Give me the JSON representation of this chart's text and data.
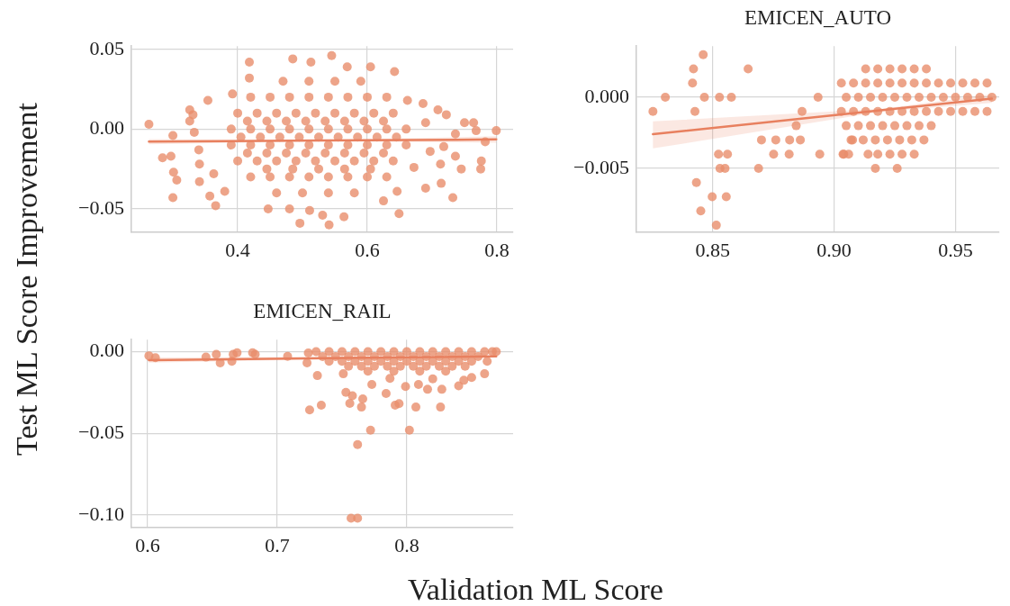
{
  "chart_data": [
    {
      "type": "scatter",
      "ylabel": "Test ML Score Improvement",
      "xlim": [
        0.236,
        0.825
      ],
      "ylim": [
        -0.0647,
        0.052
      ],
      "xticks": [
        0.4,
        0.6,
        0.8
      ],
      "yticks": [
        0.05,
        {
          "value": 0,
          "label": "0.00"
        },
        {
          "value": -0.05,
          "label": "−0.05"
        }
      ],
      "grid": true,
      "series": [
        {
          "color": "#e98d6b",
          "marker": "circle",
          "x": [
            0.263,
            0.3,
            0.284,
            0.297,
            0.301,
            0.3,
            0.306,
            0.326,
            0.326,
            0.331,
            0.354,
            0.333,
            0.34,
            0.341,
            0.341,
            0.357,
            0.366,
            0.363,
            0.392,
            0.38,
            0.418,
            0.418,
            0.485,
            0.513,
            0.545,
            0.569,
            0.605,
            0.642,
            0.496,
            0.541,
            0.531,
            0.511,
            0.447,
            0.48,
            0.564,
            0.649,
            0.625,
            0.646,
            0.69,
            0.714,
            0.732,
            0.745,
            0.775,
            0.776,
            0.799,
            0.782,
            0.764,
            0.75,
            0.768,
            0.709,
            0.686,
            0.722,
            0.662,
            0.69,
            0.697,
            0.713,
            0.672,
            0.736,
            0.736,
            0.718,
            0.47,
            0.51,
            0.55,
            0.59,
            0.42,
            0.45,
            0.48,
            0.51,
            0.54,
            0.57,
            0.6,
            0.63,
            0.4,
            0.43,
            0.46,
            0.49,
            0.52,
            0.55,
            0.58,
            0.61,
            0.64,
            0.39,
            0.42,
            0.45,
            0.48,
            0.51,
            0.54,
            0.57,
            0.6,
            0.63,
            0.66,
            0.39,
            0.42,
            0.45,
            0.48,
            0.51,
            0.54,
            0.57,
            0.6,
            0.63,
            0.66,
            0.4,
            0.43,
            0.46,
            0.49,
            0.52,
            0.55,
            0.58,
            0.61,
            0.64,
            0.42,
            0.45,
            0.48,
            0.51,
            0.54,
            0.57,
            0.6,
            0.63,
            0.46,
            0.5,
            0.54,
            0.58,
            0.415,
            0.445,
            0.475,
            0.505,
            0.535,
            0.565,
            0.595,
            0.625,
            0.405,
            0.435,
            0.465,
            0.495,
            0.525,
            0.555,
            0.585,
            0.615,
            0.645,
            0.415,
            0.445,
            0.475,
            0.505,
            0.535,
            0.565,
            0.595,
            0.625,
            0.445,
            0.485,
            0.525,
            0.565,
            0.605
          ],
          "values": [
            0.003,
            -0.004,
            -0.018,
            -0.017,
            -0.027,
            -0.043,
            -0.032,
            0.012,
            0.005,
            0.009,
            0.018,
            -0.002,
            -0.013,
            -0.022,
            -0.033,
            -0.042,
            -0.048,
            -0.028,
            0.022,
            -0.039,
            0.042,
            0.032,
            0.044,
            0.042,
            0.046,
            0.039,
            0.039,
            0.036,
            -0.059,
            -0.06,
            -0.054,
            -0.051,
            -0.05,
            -0.05,
            -0.055,
            -0.053,
            -0.045,
            -0.039,
            -0.037,
            -0.034,
            -0.043,
            -0.025,
            -0.025,
            -0.02,
            -0.001,
            -0.008,
            0.004,
            0.004,
            -0.001,
            0.012,
            0.016,
            0.009,
            0.018,
            0.004,
            -0.014,
            -0.022,
            -0.024,
            -0.017,
            -0.003,
            -0.011,
            0.03,
            0.03,
            0.03,
            0.03,
            0.02,
            0.02,
            0.02,
            0.02,
            0.02,
            0.02,
            0.02,
            0.02,
            0.01,
            0.01,
            0.01,
            0.01,
            0.01,
            0.01,
            0.01,
            0.01,
            0.01,
            0,
            0,
            0,
            0,
            0,
            0,
            0,
            0,
            0,
            0,
            -0.01,
            -0.01,
            -0.01,
            -0.01,
            -0.01,
            -0.01,
            -0.01,
            -0.01,
            -0.01,
            -0.01,
            -0.02,
            -0.02,
            -0.02,
            -0.02,
            -0.02,
            -0.02,
            -0.02,
            -0.02,
            -0.02,
            -0.03,
            -0.03,
            -0.03,
            -0.03,
            -0.03,
            -0.03,
            -0.03,
            -0.03,
            -0.04,
            -0.04,
            -0.04,
            -0.04,
            0.005,
            0.005,
            0.005,
            0.005,
            0.005,
            0.005,
            0.005,
            0.005,
            -0.005,
            -0.005,
            -0.005,
            -0.005,
            -0.005,
            -0.005,
            -0.005,
            -0.005,
            -0.005,
            -0.015,
            -0.015,
            -0.015,
            -0.015,
            -0.015,
            -0.015,
            -0.015,
            -0.015,
            -0.025,
            -0.025,
            -0.025,
            -0.025,
            -0.025
          ]
        },
        {
          "type": "line",
          "marker": "none",
          "color": "#e8805f",
          "x": [
            0.263,
            0.53,
            0.799
          ],
          "values": [
            -0.0079,
            -0.0072,
            -0.0065
          ],
          "lower": [
            -0.0095,
            -0.0076,
            -0.0085
          ],
          "upper": [
            -0.0063,
            -0.0068,
            -0.0045
          ]
        }
      ]
    },
    {
      "type": "scatter",
      "title": "EMICEN_AUTO",
      "xlim": [
        0.8186,
        0.968
      ],
      "ylim": [
        -0.0095,
        0.0036
      ],
      "xticks": [
        0.85,
        {
          "value": 0.9,
          "label": "0.90"
        },
        0.95
      ],
      "yticks": [
        {
          "value": 0,
          "label": "0.000"
        },
        {
          "value": -0.005,
          "label": "−0.005"
        }
      ],
      "grid": true,
      "series": [
        {
          "color": "#e98d6b",
          "marker": "circle",
          "x": [
            0.8254,
            0.8305,
            0.8417,
            0.8421,
            0.8461,
            0.8427,
            0.8466,
            0.8528,
            0.8577,
            0.8646,
            0.8524,
            0.8561,
            0.853,
            0.8551,
            0.8689,
            0.8433,
            0.8498,
            0.8556,
            0.8451,
            0.8515,
            0.8701,
            0.876,
            0.8817,
            0.8861,
            0.8751,
            0.8815,
            0.8941,
            0.8844,
            0.8868,
            0.8934,
            0.9037,
            0.9076,
            0.917,
            0.913,
            0.918,
            0.923,
            0.928,
            0.933,
            0.938,
            0.903,
            0.908,
            0.913,
            0.918,
            0.923,
            0.928,
            0.933,
            0.938,
            0.943,
            0.948,
            0.953,
            0.958,
            0.963,
            0.905,
            0.91,
            0.915,
            0.92,
            0.925,
            0.93,
            0.935,
            0.94,
            0.945,
            0.95,
            0.955,
            0.96,
            0.965,
            0.903,
            0.908,
            0.913,
            0.918,
            0.923,
            0.928,
            0.933,
            0.938,
            0.943,
            0.948,
            0.953,
            0.958,
            0.963,
            0.905,
            0.91,
            0.915,
            0.92,
            0.925,
            0.93,
            0.935,
            0.94,
            0.907,
            0.912,
            0.917,
            0.922,
            0.927,
            0.932,
            0.937,
            0.904,
            0.906,
            0.914,
            0.918,
            0.923,
            0.928,
            0.933,
            0.926
          ],
          "values": [
            -0.001,
            0,
            0.001,
            0.002,
            0.003,
            -0.001,
            0,
            0,
            0,
            0.002,
            -0.004,
            -0.004,
            -0.005,
            -0.005,
            -0.005,
            -0.006,
            -0.007,
            -0.007,
            -0.008,
            -0.009,
            -0.003,
            -0.003,
            -0.003,
            -0.003,
            -0.004,
            -0.004,
            -0.004,
            -0.002,
            -0.001,
            0,
            -0.004,
            -0.003,
            -0.005,
            0.002,
            0.002,
            0.002,
            0.002,
            0.002,
            0.002,
            0.001,
            0.001,
            0.001,
            0.001,
            0.001,
            0.001,
            0.001,
            0.001,
            0.001,
            0.001,
            0.001,
            0.001,
            0.001,
            0,
            0,
            0,
            0,
            0,
            0,
            0,
            0,
            0,
            0,
            0,
            0,
            0,
            -0.001,
            -0.001,
            -0.001,
            -0.001,
            -0.001,
            -0.001,
            -0.001,
            -0.001,
            -0.001,
            -0.001,
            -0.001,
            -0.001,
            -0.001,
            -0.002,
            -0.002,
            -0.002,
            -0.002,
            -0.002,
            -0.002,
            -0.002,
            -0.002,
            -0.003,
            -0.003,
            -0.003,
            -0.003,
            -0.003,
            -0.003,
            -0.003,
            -0.004,
            -0.004,
            -0.004,
            -0.004,
            -0.004,
            -0.004,
            -0.004,
            -0.005
          ]
        },
        {
          "type": "line",
          "marker": "none",
          "color": "#e8805f",
          "x": [
            0.8254,
            0.92,
            0.965
          ],
          "values": [
            -0.0026,
            -0.0009,
            -0.0001
          ],
          "lower": [
            -0.0036,
            -0.001,
            -0.0004
          ],
          "upper": [
            -0.0017,
            -0.0008,
            0.0002
          ]
        }
      ]
    },
    {
      "type": "scatter",
      "title": "EMICEN_RAIL",
      "xlabel": "Validation ML Score",
      "xlim": [
        0.5875,
        0.882
      ],
      "ylim": [
        -0.1078,
        0.0073
      ],
      "xticks": [
        0.6,
        0.7,
        0.8
      ],
      "yticks": [
        {
          "value": 0,
          "label": "0.00"
        },
        {
          "value": -0.05,
          "label": "−0.05"
        },
        {
          "value": -0.1,
          "label": "−0.10"
        }
      ],
      "grid": true,
      "series": [
        {
          "color": "#e98d6b",
          "marker": "circle",
          "x": [
            0.601,
            0.606,
            0.645,
            0.653,
            0.656,
            0.665,
            0.666,
            0.669,
            0.681,
            0.683,
            0.708,
            0.723,
            0.724,
            0.731,
            0.725,
            0.734,
            0.751,
            0.753,
            0.758,
            0.756,
            0.766,
            0.765,
            0.773,
            0.772,
            0.762,
            0.757,
            0.762,
            0.784,
            0.791,
            0.794,
            0.802,
            0.807,
            0.826,
            0.816,
            0.827,
            0.84,
            0.799,
            0.809,
            0.85,
            0.86,
            0.862,
            0.866,
            0.869,
            0.787,
            0.82,
            0.844,
            0.73,
            0.74,
            0.75,
            0.76,
            0.77,
            0.78,
            0.79,
            0.8,
            0.81,
            0.82,
            0.83,
            0.84,
            0.85,
            0.86,
            0.735,
            0.745,
            0.755,
            0.765,
            0.775,
            0.785,
            0.795,
            0.805,
            0.815,
            0.825,
            0.835,
            0.845,
            0.855,
            0.74,
            0.75,
            0.76,
            0.77,
            0.78,
            0.79,
            0.8,
            0.81,
            0.82,
            0.83,
            0.84,
            0.85,
            0.755,
            0.765,
            0.775,
            0.785,
            0.795,
            0.805,
            0.815,
            0.825,
            0.835,
            0.845,
            0.77,
            0.79,
            0.81,
            0.83
          ],
          "values": [
            -0.0026,
            -0.0038,
            -0.0034,
            -0.0017,
            -0.0069,
            -0.006,
            -0.0017,
            -0.0007,
            -0.0007,
            -0.0017,
            -0.0029,
            -0.0069,
            -0.0009,
            -0.0147,
            -0.0357,
            -0.0328,
            -0.0136,
            -0.025,
            -0.027,
            -0.0317,
            -0.029,
            -0.034,
            -0.0202,
            -0.0481,
            -0.0569,
            -0.102,
            -0.102,
            -0.0257,
            -0.0328,
            -0.0319,
            -0.0481,
            -0.034,
            -0.034,
            -0.0231,
            -0.0231,
            -0.021,
            -0.0214,
            -0.0202,
            -0.0159,
            -0.0136,
            -0.006,
            0,
            0,
            -0.0164,
            -0.0167,
            -0.0176,
            0,
            0,
            0,
            0,
            0,
            0,
            0,
            0,
            0,
            0,
            0,
            0,
            0,
            0,
            -0.003,
            -0.003,
            -0.003,
            -0.003,
            -0.003,
            -0.003,
            -0.003,
            -0.003,
            -0.003,
            -0.003,
            -0.003,
            -0.003,
            -0.003,
            -0.006,
            -0.006,
            -0.006,
            -0.006,
            -0.006,
            -0.006,
            -0.006,
            -0.006,
            -0.006,
            -0.006,
            -0.006,
            -0.006,
            -0.009,
            -0.009,
            -0.009,
            -0.009,
            -0.009,
            -0.009,
            -0.009,
            -0.009,
            -0.009,
            -0.009,
            -0.012,
            -0.012,
            -0.012,
            -0.012
          ]
        },
        {
          "type": "line",
          "marker": "none",
          "color": "#e8805f",
          "x": [
            0.601,
            0.8,
            0.869
          ],
          "values": [
            -0.0052,
            -0.0035,
            -0.0029
          ],
          "lower": [
            -0.0068,
            -0.0038,
            -0.0036
          ],
          "upper": [
            -0.0036,
            -0.0032,
            -0.0022
          ]
        }
      ]
    }
  ]
}
